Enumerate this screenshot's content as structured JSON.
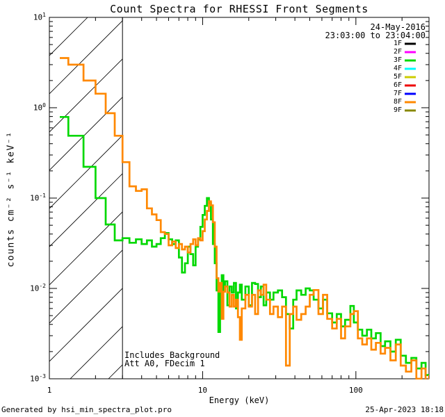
{
  "footer": {
    "left": "Generated by hsi_min_spectra_plot.pro",
    "right": "25-Apr-2023 18:18"
  },
  "chart_data": {
    "type": "line",
    "title": "Count Spectra for RHESSI Front Segments",
    "xlabel": "Energy (keV)",
    "ylabel": "counts cm⁻² s⁻¹ keV⁻¹",
    "xscale": "log",
    "yscale": "log",
    "xlim": [
      1,
      300
    ],
    "ylim": [
      0.001,
      10
    ],
    "grid": false,
    "xticks": [
      {
        "v": 1,
        "label": "1"
      },
      {
        "v": 10,
        "label": "10"
      },
      {
        "v": 100,
        "label": "100"
      }
    ],
    "yticks": [
      {
        "v": 10,
        "exp": "1"
      },
      {
        "v": 1,
        "exp": "0"
      },
      {
        "v": 0.1,
        "exp": "-1"
      },
      {
        "v": 0.01,
        "exp": "-2"
      },
      {
        "v": 0.001,
        "exp": "-3"
      }
    ],
    "hatch_region": {
      "xmin": 1,
      "xmax": 3,
      "note": "diagonal hatched low-energy region with vertical boundary line at 3 keV"
    },
    "annotations": [
      "Includes Background",
      "Att A0, FDecim 1"
    ],
    "legend": {
      "position": "top-right",
      "date": "24-May-2016",
      "time_range": "23:03:00 to 23:04:00",
      "entries": [
        {
          "label": "1F",
          "color": "#000000"
        },
        {
          "label": "2F",
          "color": "#ff00ff"
        },
        {
          "label": "3F",
          "color": "#00d800"
        },
        {
          "label": "4F",
          "color": "#00ffff"
        },
        {
          "label": "5F",
          "color": "#cccc00"
        },
        {
          "label": "6F",
          "color": "#ee0000"
        },
        {
          "label": "7F",
          "color": "#0000ff"
        },
        {
          "label": "8F",
          "color": "#ff8800"
        },
        {
          "label": "9F",
          "color": "#888800"
        }
      ]
    },
    "series": [
      {
        "name": "1F",
        "color": "#000000",
        "points": []
      },
      {
        "name": "2F",
        "color": "#ff00ff",
        "points": []
      },
      {
        "name": "3F",
        "color": "#00d800",
        "points": [
          [
            1.17,
            0.79
          ],
          [
            1.33,
            0.49
          ],
          [
            1.67,
            0.222
          ],
          [
            2.0,
            0.1
          ],
          [
            2.33,
            0.051
          ],
          [
            2.67,
            0.034
          ],
          [
            3.0,
            0.036
          ],
          [
            3.33,
            0.032
          ],
          [
            3.67,
            0.035
          ],
          [
            4.0,
            0.031
          ],
          [
            4.33,
            0.034
          ],
          [
            4.67,
            0.029
          ],
          [
            5.0,
            0.031
          ],
          [
            5.33,
            0.036
          ],
          [
            5.67,
            0.041
          ],
          [
            6.0,
            0.035
          ],
          [
            6.33,
            0.031
          ],
          [
            6.67,
            0.034
          ],
          [
            7.0,
            0.022
          ],
          [
            7.33,
            0.015
          ],
          [
            7.67,
            0.019
          ],
          [
            8.0,
            0.029
          ],
          [
            8.33,
            0.024
          ],
          [
            8.67,
            0.018
          ],
          [
            9.0,
            0.029
          ],
          [
            9.33,
            0.035
          ],
          [
            9.67,
            0.048
          ],
          [
            10.0,
            0.065
          ],
          [
            10.33,
            0.082
          ],
          [
            10.67,
            0.1
          ],
          [
            11.0,
            0.088
          ],
          [
            11.33,
            0.058
          ],
          [
            11.67,
            0.031
          ],
          [
            12.0,
            0.019
          ],
          [
            12.33,
            0.0095
          ],
          [
            12.67,
            0.0033
          ],
          [
            13.0,
            0.011
          ],
          [
            13.33,
            0.014
          ],
          [
            13.67,
            0.0095
          ],
          [
            14.0,
            0.012
          ],
          [
            14.5,
            0.0065
          ],
          [
            15.0,
            0.0105
          ],
          [
            15.5,
            0.009
          ],
          [
            16.0,
            0.0115
          ],
          [
            16.5,
            0.006
          ],
          [
            17.0,
            0.009
          ],
          [
            17.5,
            0.011
          ],
          [
            18.0,
            0.0075
          ],
          [
            19.0,
            0.0105
          ],
          [
            20.0,
            0.0065
          ],
          [
            21.0,
            0.0115
          ],
          [
            22.0,
            0.0112
          ],
          [
            23.0,
            0.008
          ],
          [
            24.0,
            0.0105
          ],
          [
            25.0,
            0.0065
          ],
          [
            26.0,
            0.009
          ],
          [
            27.5,
            0.0075
          ],
          [
            29.0,
            0.009
          ],
          [
            31.0,
            0.0095
          ],
          [
            33.0,
            0.008
          ],
          [
            35.0,
            0.0052
          ],
          [
            37.0,
            0.0036
          ],
          [
            39.0,
            0.0075
          ],
          [
            41.0,
            0.0095
          ],
          [
            44.0,
            0.0085
          ],
          [
            47.0,
            0.01
          ],
          [
            50.0,
            0.0095
          ],
          [
            53.0,
            0.0075
          ],
          [
            57.0,
            0.006
          ],
          [
            61.0,
            0.0075
          ],
          [
            65.0,
            0.0053
          ],
          [
            70.0,
            0.0042
          ],
          [
            75.0,
            0.0052
          ],
          [
            80.0,
            0.0038
          ],
          [
            85.0,
            0.0045
          ],
          [
            92.0,
            0.0064
          ],
          [
            97.0,
            0.0042
          ],
          [
            103.0,
            0.0035
          ],
          [
            110.0,
            0.003
          ],
          [
            118.0,
            0.0035
          ],
          [
            126.0,
            0.0028
          ],
          [
            135.0,
            0.0032
          ],
          [
            145.0,
            0.0023
          ],
          [
            155.0,
            0.0026
          ],
          [
            168.0,
            0.002
          ],
          [
            182.0,
            0.0027
          ],
          [
            196.0,
            0.0018
          ],
          [
            212.0,
            0.0015
          ],
          [
            230.0,
            0.0017
          ],
          [
            248.0,
            0.0013
          ],
          [
            268.0,
            0.0015
          ],
          [
            285.0,
            0.0011
          ],
          [
            300.0,
            0.0011
          ]
        ]
      },
      {
        "name": "4F",
        "color": "#00ffff",
        "points": []
      },
      {
        "name": "5F",
        "color": "#cccc00",
        "points": []
      },
      {
        "name": "6F",
        "color": "#ee0000",
        "points": []
      },
      {
        "name": "7F",
        "color": "#0000ff",
        "points": []
      },
      {
        "name": "8F",
        "color": "#ff8800",
        "points": [
          [
            1.17,
            3.55
          ],
          [
            1.33,
            3.0
          ],
          [
            1.67,
            2.0
          ],
          [
            2.0,
            1.43
          ],
          [
            2.33,
            0.87
          ],
          [
            2.67,
            0.49
          ],
          [
            3.0,
            0.25
          ],
          [
            3.33,
            0.135
          ],
          [
            3.67,
            0.12
          ],
          [
            4.0,
            0.125
          ],
          [
            4.33,
            0.077
          ],
          [
            4.67,
            0.066
          ],
          [
            5.0,
            0.057
          ],
          [
            5.33,
            0.042
          ],
          [
            5.67,
            0.04
          ],
          [
            6.0,
            0.03
          ],
          [
            6.33,
            0.033
          ],
          [
            6.67,
            0.028
          ],
          [
            7.0,
            0.031
          ],
          [
            7.33,
            0.027
          ],
          [
            7.67,
            0.029
          ],
          [
            8.0,
            0.025
          ],
          [
            8.33,
            0.031
          ],
          [
            8.67,
            0.035
          ],
          [
            9.0,
            0.03
          ],
          [
            9.33,
            0.036
          ],
          [
            9.67,
            0.034
          ],
          [
            10.0,
            0.043
          ],
          [
            10.33,
            0.058
          ],
          [
            10.67,
            0.072
          ],
          [
            11.0,
            0.092
          ],
          [
            11.33,
            0.083
          ],
          [
            11.67,
            0.054
          ],
          [
            12.0,
            0.029
          ],
          [
            12.33,
            0.013
          ],
          [
            12.67,
            0.0092
          ],
          [
            13.0,
            0.0115
          ],
          [
            13.33,
            0.0046
          ],
          [
            13.67,
            0.0092
          ],
          [
            14.0,
            0.0105
          ],
          [
            14.5,
            0.009
          ],
          [
            15.0,
            0.0063
          ],
          [
            15.5,
            0.0085
          ],
          [
            16.0,
            0.0063
          ],
          [
            16.5,
            0.0075
          ],
          [
            17.0,
            0.0048
          ],
          [
            17.5,
            0.0027
          ],
          [
            18.0,
            0.006
          ],
          [
            19.0,
            0.0085
          ],
          [
            20.0,
            0.0063
          ],
          [
            21.0,
            0.0085
          ],
          [
            22.0,
            0.0052
          ],
          [
            23.0,
            0.0095
          ],
          [
            24.0,
            0.0085
          ],
          [
            25.0,
            0.011
          ],
          [
            26.0,
            0.0075
          ],
          [
            27.5,
            0.0052
          ],
          [
            29.0,
            0.0063
          ],
          [
            31.0,
            0.0048
          ],
          [
            33.0,
            0.0063
          ],
          [
            35.0,
            0.0014
          ],
          [
            37.0,
            0.0052
          ],
          [
            39.0,
            0.0063
          ],
          [
            41.0,
            0.0045
          ],
          [
            44.0,
            0.0052
          ],
          [
            47.0,
            0.0063
          ],
          [
            50.0,
            0.0085
          ],
          [
            53.0,
            0.0096
          ],
          [
            57.0,
            0.0052
          ],
          [
            61.0,
            0.0085
          ],
          [
            65.0,
            0.0046
          ],
          [
            70.0,
            0.0036
          ],
          [
            75.0,
            0.0046
          ],
          [
            80.0,
            0.0028
          ],
          [
            85.0,
            0.0038
          ],
          [
            92.0,
            0.0052
          ],
          [
            97.0,
            0.0056
          ],
          [
            103.0,
            0.0028
          ],
          [
            110.0,
            0.0024
          ],
          [
            118.0,
            0.0028
          ],
          [
            126.0,
            0.0021
          ],
          [
            135.0,
            0.0025
          ],
          [
            145.0,
            0.0019
          ],
          [
            155.0,
            0.0022
          ],
          [
            168.0,
            0.0016
          ],
          [
            182.0,
            0.0024
          ],
          [
            196.0,
            0.0014
          ],
          [
            212.0,
            0.0012
          ],
          [
            230.0,
            0.0016
          ],
          [
            248.0,
            0.001
          ],
          [
            268.0,
            0.0013
          ],
          [
            285.0,
            0.00085
          ],
          [
            300.0,
            0.0011
          ]
        ]
      },
      {
        "name": "9F",
        "color": "#888800",
        "points": []
      }
    ]
  }
}
